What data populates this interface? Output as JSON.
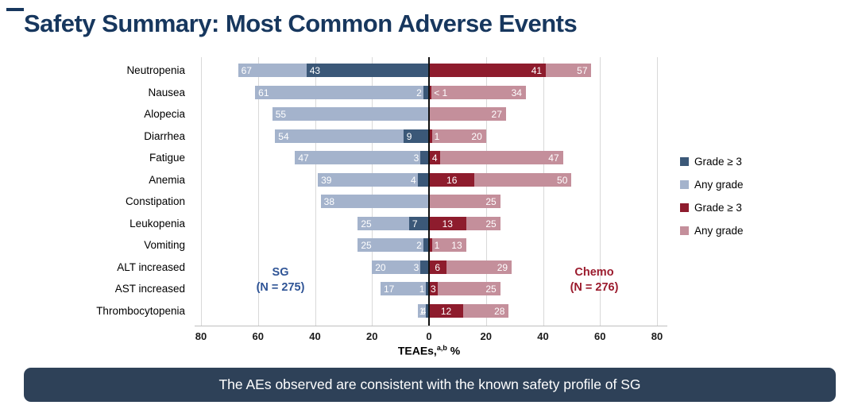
{
  "title": "Safety Summary: Most Common Adverse Events",
  "banner": {
    "text": "The AEs observed are consistent with the known safety profile of SG"
  },
  "axis": {
    "label_main": "TEAEs,",
    "label_sup": "a,b",
    "label_unit": " %"
  },
  "annotations": {
    "sg_line1": "SG",
    "sg_line2": "(N = 275)",
    "chemo_line1": "Chemo",
    "chemo_line2": "(N = 276)"
  },
  "legend": [
    {
      "series": "sg-grade3",
      "label": "Grade ≥ 3",
      "color": "#3B5878"
    },
    {
      "series": "sg-any",
      "label": "Any grade",
      "color": "#A4B3CC"
    },
    {
      "series": "chemo-grade3",
      "label": "Grade ≥ 3",
      "color": "#8E1C2D"
    },
    {
      "series": "chemo-any",
      "label": "Any grade",
      "color": "#C48F9B"
    }
  ],
  "colors": {
    "sg_grade3": "#3B5878",
    "sg_any": "#A4B3CC",
    "chemo_grade3": "#8E1C2D",
    "chemo_any": "#C48F9B",
    "title_navy": "#17375E",
    "banner_bg": "#2E4158",
    "gridline": "#D9D9D9"
  },
  "chart_data": {
    "type": "bar",
    "variant": "diverging-tornado",
    "title": "Safety Summary: Most Common Adverse Events",
    "xlabel": "TEAEs, %",
    "x_ticks": [
      -80,
      -60,
      -40,
      -20,
      0,
      20,
      40,
      60,
      80
    ],
    "x_tick_labels": [
      "80",
      "60",
      "40",
      "20",
      "0",
      "20",
      "40",
      "60",
      "80"
    ],
    "xlim": [
      -84,
      84
    ],
    "grid": true,
    "legend_position": "right",
    "left_group": "SG (N = 275)",
    "right_group": "Chemo (N = 276)",
    "categories": [
      "Neutropenia",
      "Nausea",
      "Alopecia",
      "Diarrhea",
      "Fatigue",
      "Anemia",
      "Constipation",
      "Leukopenia",
      "Vomiting",
      "ALT increased",
      "AST increased",
      "Thrombocytopenia"
    ],
    "rows": [
      {
        "label": "Neutropenia",
        "sg_any": 67,
        "sg_g3": 43,
        "chemo_g3": 41,
        "chemo_any": 57
      },
      {
        "label": "Nausea",
        "sg_any": 61,
        "sg_g3": 2,
        "chemo_g3": 0.9,
        "chemo_g3_label": "< 1",
        "chemo_any": 34
      },
      {
        "label": "Alopecia",
        "sg_any": 55,
        "sg_g3": null,
        "chemo_g3": null,
        "chemo_any": 27
      },
      {
        "label": "Diarrhea",
        "sg_any": 54,
        "sg_g3": 9,
        "chemo_g3": 1,
        "chemo_any": 20
      },
      {
        "label": "Fatigue",
        "sg_any": 47,
        "sg_g3": 3,
        "chemo_g3": 4,
        "chemo_any": 47
      },
      {
        "label": "Anemia",
        "sg_any": 39,
        "sg_g3": 4,
        "chemo_g3": 16,
        "chemo_any": 50
      },
      {
        "label": "Constipation",
        "sg_any": 38,
        "sg_g3": null,
        "chemo_g3": null,
        "chemo_any": 25
      },
      {
        "label": "Leukopenia",
        "sg_any": 25,
        "sg_g3": 7,
        "chemo_g3": 13,
        "chemo_any": 25
      },
      {
        "label": "Vomiting",
        "sg_any": 25,
        "sg_g3": 2,
        "chemo_g3": 1,
        "chemo_any": 13
      },
      {
        "label": "ALT increased",
        "sg_any": 20,
        "sg_g3": 3,
        "chemo_g3": 6,
        "chemo_any": 29
      },
      {
        "label": "AST increased",
        "sg_any": 17,
        "sg_g3": 1,
        "chemo_g3": 3,
        "chemo_any": 25
      },
      {
        "label": "Thrombocytopenia",
        "sg_any": 4,
        "sg_g3": 1,
        "chemo_g3": 12,
        "chemo_any": 28
      }
    ]
  }
}
